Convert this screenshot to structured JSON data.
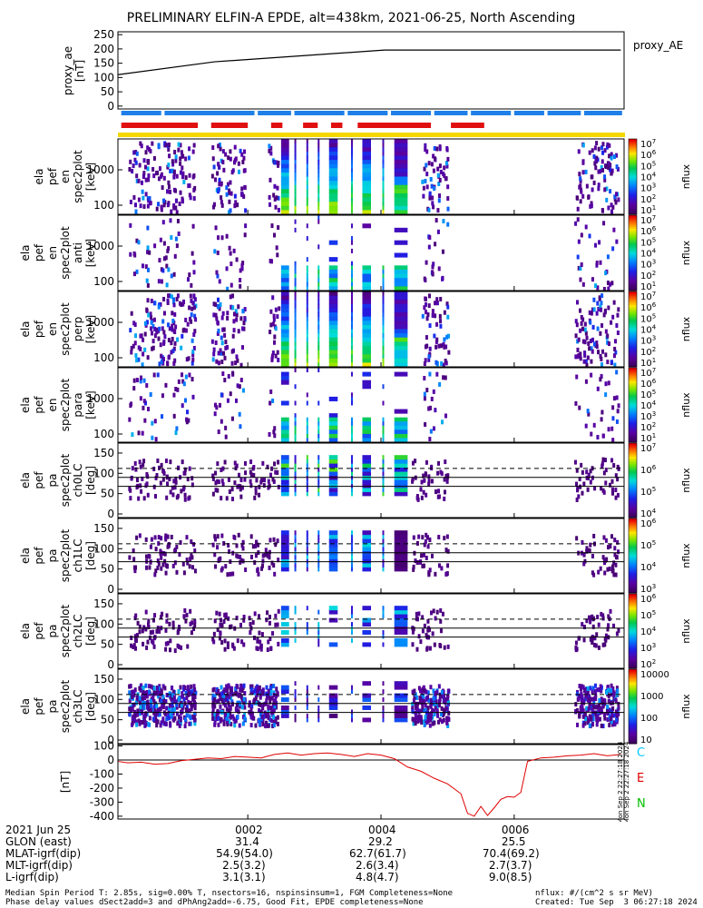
{
  "title": "PRELIMINARY ELFIN-A EPDE, alt=438km, 2021-06-25, North Ascending",
  "chart_data": {
    "type": "multi-panel spectrogram",
    "x": {
      "ticks": [
        "0002",
        "0004",
        "0006"
      ],
      "tick_minutes": [
        2,
        4,
        6
      ],
      "range_minutes": [
        0.05,
        7.65
      ]
    },
    "proxy_ae": {
      "ylabel": "proxy_ae\n[nT]",
      "legend": "proxy_AE",
      "ytick_values": [
        0,
        50,
        100,
        150,
        200,
        250
      ],
      "ytick_labels": [
        "0",
        "50",
        "100",
        "150",
        "200",
        "250"
      ],
      "ylim": [
        -10,
        260
      ],
      "series": [
        {
          "x": 0.05,
          "y": 110
        },
        {
          "x": 1.5,
          "y": 155
        },
        {
          "x": 4.05,
          "y": 196
        },
        {
          "x": 7.6,
          "y": 196
        }
      ],
      "color": "#000000"
    },
    "status_bars": {
      "blue_color": "#1e7fe8",
      "red_color": "#e01010",
      "yellow_color": "#f5d800",
      "blue_segments": [
        [
          0.1,
          0.7
        ],
        [
          0.75,
          2.1
        ],
        [
          2.15,
          2.65
        ],
        [
          2.7,
          3.45
        ],
        [
          3.5,
          4.1
        ],
        [
          4.15,
          4.75
        ],
        [
          4.8,
          5.3
        ],
        [
          5.35,
          5.95
        ],
        [
          6.0,
          6.45
        ],
        [
          6.5,
          7.0
        ],
        [
          7.05,
          7.62
        ]
      ],
      "red_segments": [
        [
          0.1,
          1.25
        ],
        [
          1.45,
          2.0
        ],
        [
          2.35,
          2.52
        ],
        [
          2.83,
          3.05
        ],
        [
          3.25,
          3.42
        ],
        [
          3.65,
          4.75
        ],
        [
          5.05,
          5.55
        ]
      ]
    },
    "spectrogram_panels": [
      {
        "ylabel": [
          "ela",
          "pef",
          "en",
          "spec2plot",
          "[keV]"
        ],
        "ylabel_mid": "en",
        "yticks": [
          "1000",
          "100"
        ],
        "cb_ticks": [
          "10^7",
          "10^6",
          "10^5",
          "10^4",
          "10^3",
          "10^2",
          "10^1"
        ],
        "cb_label": "nflux"
      },
      {
        "ylabel": [
          "ela",
          "pef",
          "en",
          "spec2plot",
          "anti",
          "[keV]"
        ],
        "ylabel_mid": "anti",
        "yticks": [
          "1000",
          "100"
        ],
        "cb_ticks": [
          "10^7",
          "10^6",
          "10^5",
          "10^4",
          "10^3",
          "10^2",
          "10^1"
        ],
        "cb_label": "nflux"
      },
      {
        "ylabel": [
          "ela",
          "pef",
          "en",
          "spec2plot",
          "perp",
          "[keV]"
        ],
        "ylabel_mid": "perp",
        "yticks": [
          "1000",
          "100"
        ],
        "cb_ticks": [
          "10^7",
          "10^6",
          "10^5",
          "10^4",
          "10^3",
          "10^2",
          "10^1"
        ],
        "cb_label": "nflux"
      },
      {
        "ylabel": [
          "ela",
          "pef",
          "en",
          "spec2plot",
          "para",
          "[keV]"
        ],
        "ylabel_mid": "para",
        "yticks": [
          "1000",
          "100"
        ],
        "cb_ticks": [
          "10^7",
          "10^6",
          "10^5",
          "10^4",
          "10^3",
          "10^2",
          "10^1"
        ],
        "cb_label": "nflux"
      }
    ],
    "pitch_angle_panels": [
      {
        "ylabel": [
          "ela",
          "pef",
          "pa",
          "spec2plot",
          "ch0LC",
          "[deg]"
        ],
        "yticks": [
          "0",
          "50",
          "100",
          "150"
        ],
        "cb_ticks": [
          "10^7",
          "10^6",
          "10^5",
          "10^4"
        ],
        "cb_label": "nflux"
      },
      {
        "ylabel": [
          "ela",
          "pef",
          "pa",
          "spec2plot",
          "ch1LC",
          "[deg]"
        ],
        "yticks": [
          "0",
          "50",
          "100",
          "150"
        ],
        "cb_ticks": [
          "10^6",
          "10^5",
          "10^4",
          "10^3"
        ],
        "cb_label": "nflux"
      },
      {
        "ylabel": [
          "ela",
          "pef",
          "pa",
          "spec2plot",
          "ch2LC",
          "[deg]"
        ],
        "yticks": [
          "0",
          "50",
          "100",
          "150"
        ],
        "cb_ticks": [
          "10^6",
          "10^5",
          "10^4",
          "10^3",
          "10^2"
        ],
        "cb_label": "nflux"
      },
      {
        "ylabel": [
          "ela",
          "pef",
          "pa",
          "spec2plot",
          "ch3LC",
          "[deg]"
        ],
        "yticks": [
          "0",
          "50",
          "100",
          "150"
        ],
        "cb_ticks": [
          "10000",
          "1000",
          "100",
          "10"
        ],
        "cb_label": "nflux"
      }
    ],
    "mag_panel": {
      "ylabel": "[nT]",
      "yticks": [
        "100",
        "0",
        "-100",
        "-200",
        "-300",
        "-400"
      ],
      "ylim": [
        -420,
        110
      ],
      "legend": [
        {
          "label": "C",
          "color": "#00c8ff"
        },
        {
          "label": "E",
          "color": "#e00000"
        },
        {
          "label": "N",
          "color": "#00c000"
        }
      ],
      "series": [
        {
          "name": "E",
          "color": "#e00000",
          "x": [
            0.05,
            0.2,
            0.4,
            0.6,
            0.8,
            1.0,
            1.2,
            1.4,
            1.6,
            1.8,
            2.0,
            2.2,
            2.4,
            2.6,
            2.8,
            3.0,
            3.2,
            3.4,
            3.6,
            3.8,
            4.0,
            4.2,
            4.4,
            4.6,
            4.8,
            5.0,
            5.2,
            5.3,
            5.4,
            5.5,
            5.6,
            5.7,
            5.8,
            5.9,
            6.0,
            6.1,
            6.2,
            6.4,
            6.6,
            6.8,
            7.0,
            7.2,
            7.4,
            7.6
          ],
          "y": [
            -10,
            -20,
            -15,
            -30,
            -25,
            -5,
            5,
            15,
            10,
            25,
            20,
            15,
            40,
            50,
            35,
            45,
            50,
            40,
            25,
            45,
            35,
            10,
            -50,
            -80,
            -130,
            -170,
            -240,
            -380,
            -400,
            -330,
            -395,
            -340,
            -280,
            -260,
            -265,
            -230,
            -10,
            15,
            20,
            30,
            35,
            45,
            30,
            40
          ]
        }
      ]
    },
    "ephemeris": {
      "rows": [
        {
          "label": "2021 Jun 25",
          "values": [
            "0002",
            "0004",
            "0006"
          ]
        },
        {
          "label": "GLON (east)",
          "values": [
            "31.4",
            "29.2",
            "25.5"
          ]
        },
        {
          "label": "MLAT-igrf(dip)",
          "values": [
            "54.9(54.0)",
            "62.7(61.7)",
            "70.4(69.2)"
          ]
        },
        {
          "label": "MLT-igrf(dip)",
          "values": [
            "2.5(3.2)",
            "2.6(3.4)",
            "2.7(3.7)"
          ]
        },
        {
          "label": "L-igrf(dip)",
          "values": [
            "3.1(3.1)",
            "4.8(4.7)",
            "9.0(8.5)"
          ]
        }
      ]
    }
  },
  "footer": {
    "line1": "Median Spin Period T: 2.85s, sig=0.00% T, nsectors=16, nspinsinsum=1, FGM Completeness=None",
    "line2": "Phase delay values dSect2add=3 and dPhAng2add=-6.75, Good Fit, EPDE completeness=None",
    "units": "nflux: #/(cm^2 s sr MeV)",
    "created": "Created: Tue Sep  3 06:27:18 2024",
    "side_stamp": "Mon Sep  2 22:27:18 2024"
  }
}
